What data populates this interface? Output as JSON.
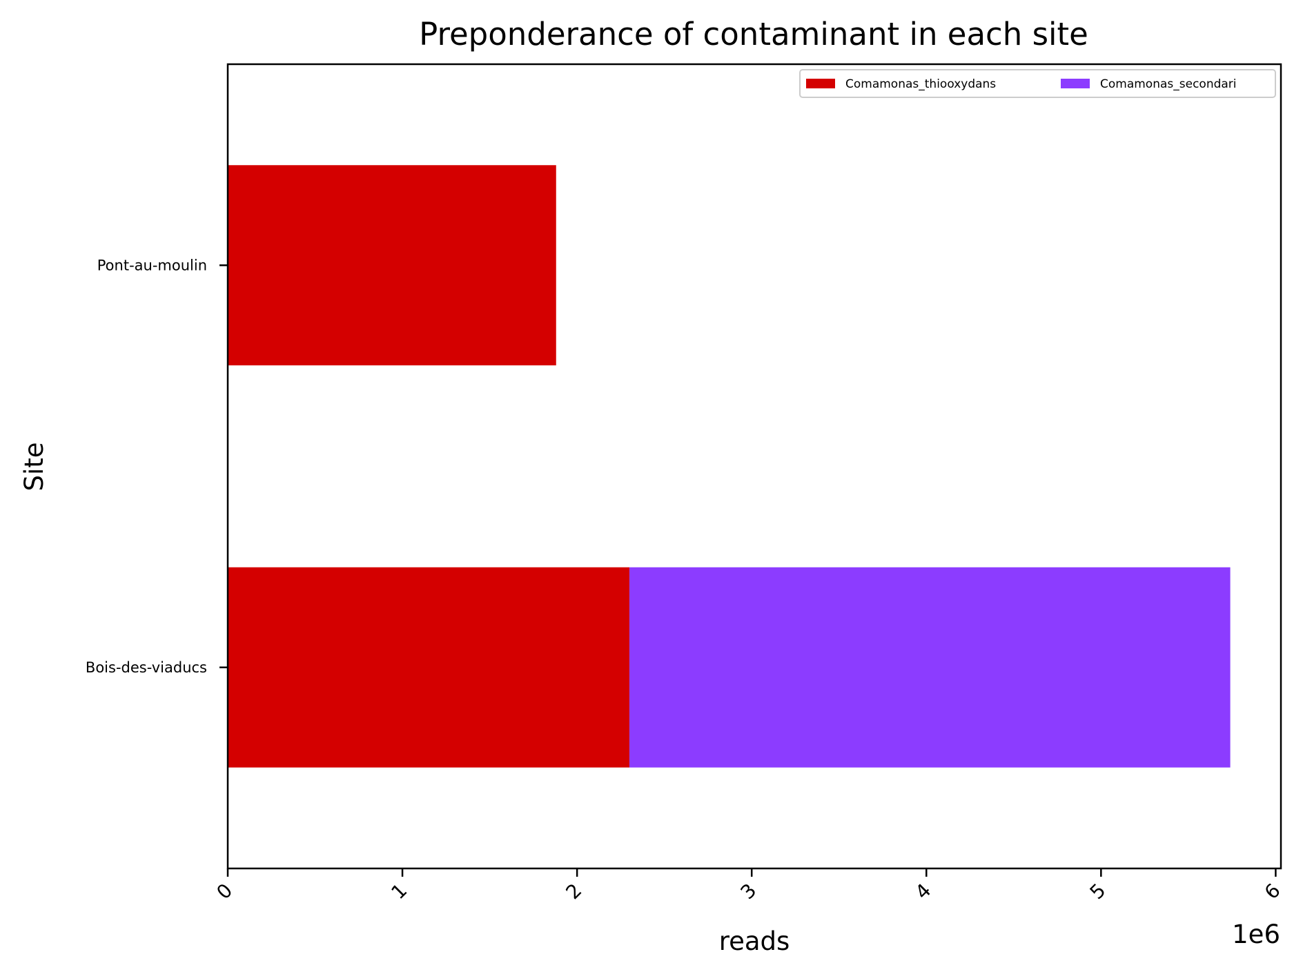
{
  "chart_data": {
    "type": "bar",
    "orientation": "horizontal",
    "stacked": true,
    "title": "Preponderance of contaminant in each site",
    "xlabel": "reads",
    "ylabel": "Site",
    "x_multiplier": "1e6",
    "xlim": [
      0,
      6.03
    ],
    "x_ticks": [
      0,
      1,
      2,
      3,
      4,
      5,
      6
    ],
    "x_tick_labels": [
      "0",
      "1",
      "2",
      "3",
      "4",
      "5",
      "6"
    ],
    "categories": [
      "Bois-des-viaducs",
      "Pont-au-moulin"
    ],
    "series": [
      {
        "name": "Comamonas_thiooxydans",
        "color": "#d40000",
        "values": [
          2.3,
          1.88
        ]
      },
      {
        "name": "Comamonas_secondari",
        "color": "#8c3cff",
        "values": [
          3.44,
          0
        ]
      }
    ],
    "legend_position": "top-right",
    "legend_columns": 2,
    "grid": false
  }
}
